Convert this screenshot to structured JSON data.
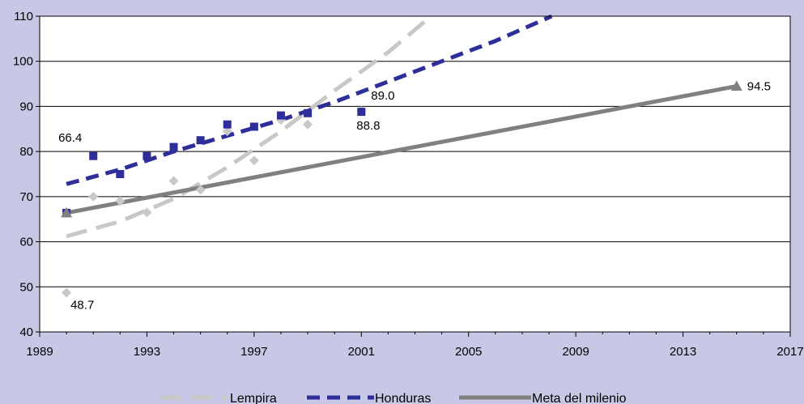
{
  "colors": {
    "background": "#c8c8e6",
    "plot_area": "#ffffff",
    "lempira": "#c8c8c8",
    "honduras": "#2e2e9a",
    "meta": "#808080"
  },
  "chart_data": {
    "type": "line",
    "xlim": [
      1989,
      2017
    ],
    "ylim": [
      40,
      110
    ],
    "x_ticks": [
      "1989",
      "1993",
      "1997",
      "2001",
      "2005",
      "2009",
      "2013",
      "2017"
    ],
    "y_ticks": [
      "40",
      "50",
      "60",
      "70",
      "80",
      "90",
      "100",
      "110"
    ],
    "grid": "horizontal",
    "legend_position": "bottom",
    "series": [
      {
        "name": "Lempira",
        "style": "dashed-light",
        "markers": "diamond",
        "points": [
          {
            "x": 1990,
            "y": 48.7
          },
          {
            "x": 1991,
            "y": 70
          },
          {
            "x": 1992,
            "y": 69
          },
          {
            "x": 1993,
            "y": 66.5
          },
          {
            "x": 1994,
            "y": 73.5
          },
          {
            "x": 1995,
            "y": 71.5
          },
          {
            "x": 1996,
            "y": 84.5
          },
          {
            "x": 1997,
            "y": 78
          },
          {
            "x": 1998,
            "y": 87
          },
          {
            "x": 1999,
            "y": 86
          },
          {
            "x": 2001,
            "y": 89.0
          }
        ],
        "trend": [
          {
            "x": 1990,
            "y": 61.2
          },
          {
            "x": 1992,
            "y": 64.5
          },
          {
            "x": 1994,
            "y": 69.5
          },
          {
            "x": 1996,
            "y": 76.5
          },
          {
            "x": 1998,
            "y": 84.5
          },
          {
            "x": 2000,
            "y": 93.5
          },
          {
            "x": 2002,
            "y": 102
          },
          {
            "x": 2003.6,
            "y": 110
          }
        ]
      },
      {
        "name": "Honduras",
        "style": "dashed-dark",
        "markers": "square",
        "points": [
          {
            "x": 1990,
            "y": 66.4
          },
          {
            "x": 1991,
            "y": 79
          },
          {
            "x": 1992,
            "y": 75
          },
          {
            "x": 1993,
            "y": 79
          },
          {
            "x": 1994,
            "y": 81
          },
          {
            "x": 1995,
            "y": 82.5
          },
          {
            "x": 1996,
            "y": 86
          },
          {
            "x": 1997,
            "y": 85.5
          },
          {
            "x": 1998,
            "y": 88
          },
          {
            "x": 1999,
            "y": 88.5
          },
          {
            "x": 2001,
            "y": 88.8
          }
        ],
        "trend": [
          {
            "x": 1990,
            "y": 72.8
          },
          {
            "x": 1992,
            "y": 76
          },
          {
            "x": 1994,
            "y": 80
          },
          {
            "x": 1996,
            "y": 83.5
          },
          {
            "x": 1998,
            "y": 87
          },
          {
            "x": 2000,
            "y": 91
          },
          {
            "x": 2002,
            "y": 95.5
          },
          {
            "x": 2004,
            "y": 100
          },
          {
            "x": 2006,
            "y": 104.5
          },
          {
            "x": 2008.1,
            "y": 110
          }
        ]
      },
      {
        "name": "Meta del milenio",
        "style": "solid",
        "markers": "triangle-endpoints",
        "points": [
          {
            "x": 1990,
            "y": 66.4
          },
          {
            "x": 2015,
            "y": 94.5
          }
        ],
        "trend": [
          {
            "x": 1990,
            "y": 66.4
          },
          {
            "x": 2015,
            "y": 94.5
          }
        ]
      }
    ],
    "data_labels": [
      {
        "text": "66.4",
        "x": 1990,
        "y": 66.4,
        "anchor": "above"
      },
      {
        "text": "48.7",
        "x": 1990,
        "y": 48.7,
        "anchor": "below-right"
      },
      {
        "text": "89.0",
        "x": 2001,
        "y": 89.0,
        "anchor": "above"
      },
      {
        "text": "88.8",
        "x": 2001,
        "y": 88.8,
        "anchor": "below"
      },
      {
        "text": "94.5",
        "x": 2015,
        "y": 94.5,
        "anchor": "right"
      }
    ]
  }
}
